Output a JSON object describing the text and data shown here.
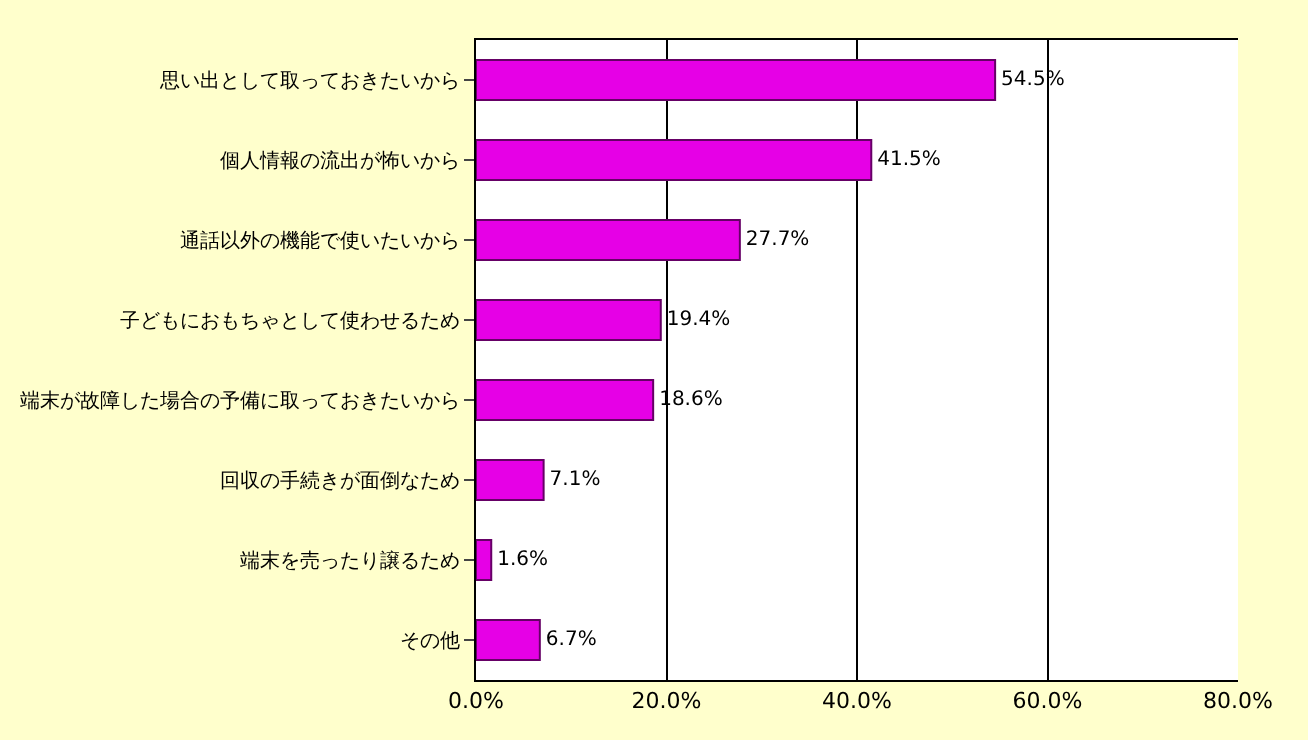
{
  "chart_data": {
    "type": "bar",
    "orientation": "horizontal",
    "categories": [
      "思い出として取っておきたいから",
      "個人情報の流出が怖いから",
      "通話以外の機能で使いたいから",
      "子どもにおもちゃとして使わせるため",
      "端末が故障した場合の予備に取っておきたいから",
      "回収の手続きが面倒なため",
      "端末を売ったり譲るため",
      "その他"
    ],
    "values": [
      54.5,
      41.5,
      27.7,
      19.4,
      18.6,
      7.1,
      1.6,
      6.7
    ],
    "value_labels": [
      "54.5%",
      "41.5%",
      "27.7%",
      "19.4%",
      "18.6%",
      "7.1%",
      "1.6%",
      "6.7%"
    ],
    "color": "#e600e6",
    "xlim": [
      0,
      80
    ],
    "xticks": [
      {
        "value": 0,
        "label": "0.0%"
      },
      {
        "value": 20,
        "label": "20.0%"
      },
      {
        "value": 40,
        "label": "40.0%"
      },
      {
        "value": 60,
        "label": "60.0%"
      },
      {
        "value": 80,
        "label": "80.0%"
      }
    ],
    "grid": "x",
    "legend": false
  }
}
